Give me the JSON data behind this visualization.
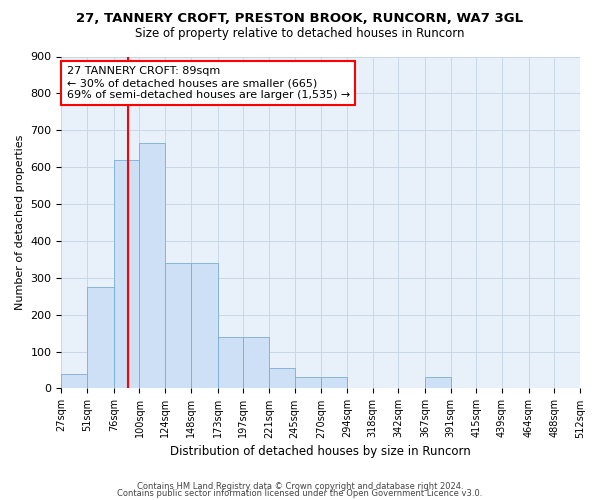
{
  "title1": "27, TANNERY CROFT, PRESTON BROOK, RUNCORN, WA7 3GL",
  "title2": "Size of property relative to detached houses in Runcorn",
  "xlabel": "Distribution of detached houses by size in Runcorn",
  "ylabel": "Number of detached properties",
  "bar_color": "#cde0f5",
  "bar_edgecolor": "#7aadd4",
  "vline_x": 89,
  "vline_color": "red",
  "annotation_text": "27 TANNERY CROFT: 89sqm\n← 30% of detached houses are smaller (665)\n69% of semi-detached houses are larger (1,535) →",
  "annotation_box_color": "white",
  "annotation_box_edgecolor": "red",
  "bins": [
    27,
    51,
    76,
    100,
    124,
    148,
    173,
    197,
    221,
    245,
    270,
    294,
    318,
    342,
    367,
    391,
    415,
    439,
    464,
    488,
    512
  ],
  "counts": [
    40,
    275,
    620,
    665,
    340,
    340,
    140,
    140,
    55,
    30,
    30,
    0,
    0,
    0,
    30,
    0,
    0,
    0,
    0,
    0
  ],
  "ylim": [
    0,
    900
  ],
  "yticks": [
    0,
    100,
    200,
    300,
    400,
    500,
    600,
    700,
    800,
    900
  ],
  "footnote1": "Contains HM Land Registry data © Crown copyright and database right 2024.",
  "footnote2": "Contains public sector information licensed under the Open Government Licence v3.0.",
  "figwidth": 6.0,
  "figheight": 5.0,
  "dpi": 100
}
